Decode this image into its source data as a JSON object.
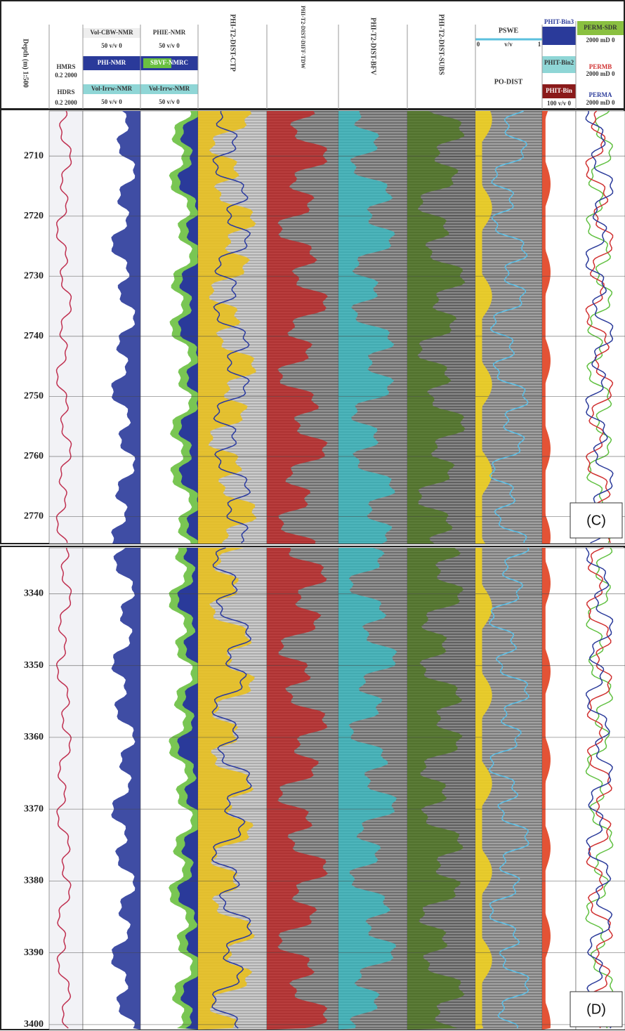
{
  "header": {
    "depth": "Depth (m) 1:500",
    "hmrs": "HMRS",
    "hmrs_scale": "0.2 2000",
    "hdrs": "HDRS",
    "hdrs_scale": "0.2 2000",
    "cbw": "Vol-CBW-NMR",
    "cbw_scale": "50 v/v 0",
    "phi": "PHI-NMR",
    "irr1": "Vol-Irrw-NMR",
    "irr1_scale": "50 v/v 0",
    "phie": "PHIE-NMR",
    "phie_scale": "50 v/v 0",
    "sbvf": "SBVF-NMRC",
    "irr2": "Vol-Irrw-NMR",
    "irr2_scale": "50 v/v 0",
    "ctp": "PHI-T2-DIST-CTP",
    "tdw": "PHI-T2-DIST-DIFF-TDW",
    "bfv": "PHI-T2-DIST-BFV",
    "subs": "PHI-T2-DIST-SUBS",
    "pswe": "PSWE",
    "pswe_min": "0",
    "pswe_unit": "v/v",
    "pswe_max": "1",
    "podist": "PO-DIST",
    "bin3": "PHIT-Bin3",
    "bin2": "PHIT-Bin2",
    "bin1": "PHIT-Bin",
    "bin_scale": "100 v/v 0",
    "sdr": "PERM-SDR",
    "sdr_scale": "2000 mD 0",
    "permb": "PERMB",
    "permb_scale": "2000 mD 0",
    "perma": "PERMA",
    "perma_scale": "2000 mD 0"
  },
  "chart_data": [
    {
      "type": "well-log",
      "title": "(C)",
      "ylim": [
        2702.5,
        2774.5
      ],
      "yticks": [
        2710,
        2720,
        2730,
        2740,
        2750,
        2760,
        2770
      ]
    },
    {
      "type": "well-log",
      "title": "(D)",
      "ylim": [
        3333.6,
        3400.7
      ],
      "yticks": [
        3340,
        3350,
        3360,
        3370,
        3380,
        3390,
        3400
      ]
    }
  ]
}
